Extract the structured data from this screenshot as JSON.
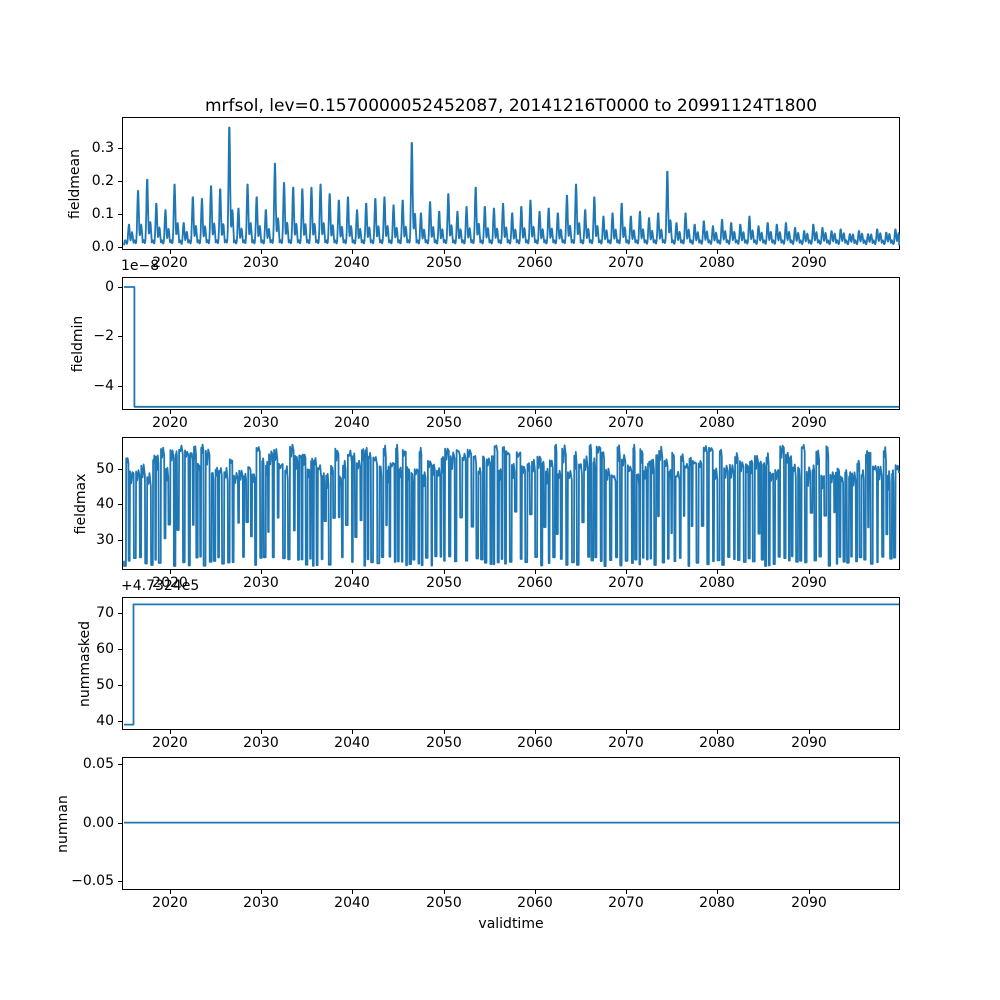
{
  "figure": {
    "title": "mrfsol, lev=0.1570000052452087, 20141216T0000 to 20991124T1800",
    "xlabel": "validtime",
    "background_color": "#ffffff",
    "line_color": "#1f77b4",
    "spine_color": "#000000",
    "x_start": 2014.96,
    "x_end": 2099.9,
    "xlim": [
      2014.74,
      2100.0
    ],
    "x_tick_values": [
      2020,
      2030,
      2040,
      2050,
      2060,
      2070,
      2080,
      2090
    ],
    "x_tick_labels": [
      "2020",
      "2030",
      "2040",
      "2050",
      "2060",
      "2070",
      "2080",
      "2090"
    ]
  },
  "chart_data": [
    {
      "panel": "fieldmean",
      "type": "line",
      "ylabel": "fieldmean",
      "ytick_labels": [
        "0.0",
        "0.1",
        "0.2",
        "0.3"
      ],
      "ytick_values": [
        0.0,
        0.1,
        0.2,
        0.3
      ],
      "ylim": [
        -0.01,
        0.394
      ],
      "baseline": 0.004,
      "peak_years_start": 2015,
      "annual_peaks": [
        0.065,
        0.17,
        0.205,
        0.13,
        0.11,
        0.19,
        0.07,
        0.15,
        0.145,
        0.185,
        0.175,
        0.368,
        0.115,
        0.19,
        0.15,
        0.11,
        0.255,
        0.195,
        0.18,
        0.175,
        0.18,
        0.19,
        0.16,
        0.14,
        0.15,
        0.11,
        0.13,
        0.145,
        0.15,
        0.125,
        0.14,
        0.32,
        0.1,
        0.135,
        0.105,
        0.16,
        0.105,
        0.12,
        0.18,
        0.12,
        0.115,
        0.13,
        0.1,
        0.12,
        0.14,
        0.105,
        0.115,
        0.1,
        0.155,
        0.19,
        0.11,
        0.15,
        0.09,
        0.1,
        0.13,
        0.09,
        0.105,
        0.085,
        0.1,
        0.23,
        0.07,
        0.1,
        0.065,
        0.075,
        0.06,
        0.08,
        0.07,
        0.065,
        0.09,
        0.06,
        0.07,
        0.065,
        0.07,
        0.055,
        0.045,
        0.065,
        0.055,
        0.045,
        0.05,
        0.035,
        0.045,
        0.035,
        0.05,
        0.04,
        0.05
      ]
    },
    {
      "panel": "fieldmin",
      "type": "line",
      "ylabel": "fieldmin",
      "offset_text": "1e−8",
      "scale_factor": 1e-08,
      "ytick_labels": [
        "0",
        "−2",
        "−4"
      ],
      "ytick_values": [
        0,
        -2,
        -4
      ],
      "ylim": [
        -4.98,
        0.404
      ],
      "step": {
        "x_change": 2016.1,
        "value_before": 0,
        "value_after": -4.85,
        "actual_value_after": -4.85e-08
      }
    },
    {
      "panel": "fieldmax",
      "type": "line",
      "ylabel": "fieldmax",
      "ytick_labels": [
        "30",
        "40",
        "50"
      ],
      "ytick_values": [
        30,
        40,
        50
      ],
      "ylim": [
        21.4,
        58.96
      ],
      "oscillation": {
        "y_high_range": [
          47.5,
          56.5
        ],
        "y_low_range": [
          22.5,
          25.3
        ],
        "shallow_dip_range": [
          30,
          38
        ],
        "shallow_dip_fraction": 0.2,
        "cycles_per_year": 2.1,
        "seed": 97531
      }
    },
    {
      "panel": "nummasked",
      "type": "line",
      "ylabel": "nummasked",
      "offset_text": "+4.7324e5",
      "offset_value": 473240,
      "ytick_labels": [
        "40",
        "50",
        "60",
        "70"
      ],
      "ytick_values": [
        40,
        50,
        60,
        70
      ],
      "ylim": [
        37.6,
        74.35
      ],
      "step": {
        "x_change": 2016.0,
        "value_before": 39.1,
        "value_after": 72.3,
        "actual_value_before": 473279.1,
        "actual_value_after": 473312.3
      }
    },
    {
      "panel": "numnan",
      "type": "line",
      "ylabel": "numnan",
      "ytick_labels": [
        "−0.05",
        "0.00",
        "0.05"
      ],
      "ytick_values": [
        -0.05,
        0.0,
        0.05
      ],
      "ylim": [
        -0.0576,
        0.056
      ],
      "constant_value": 0
    }
  ]
}
